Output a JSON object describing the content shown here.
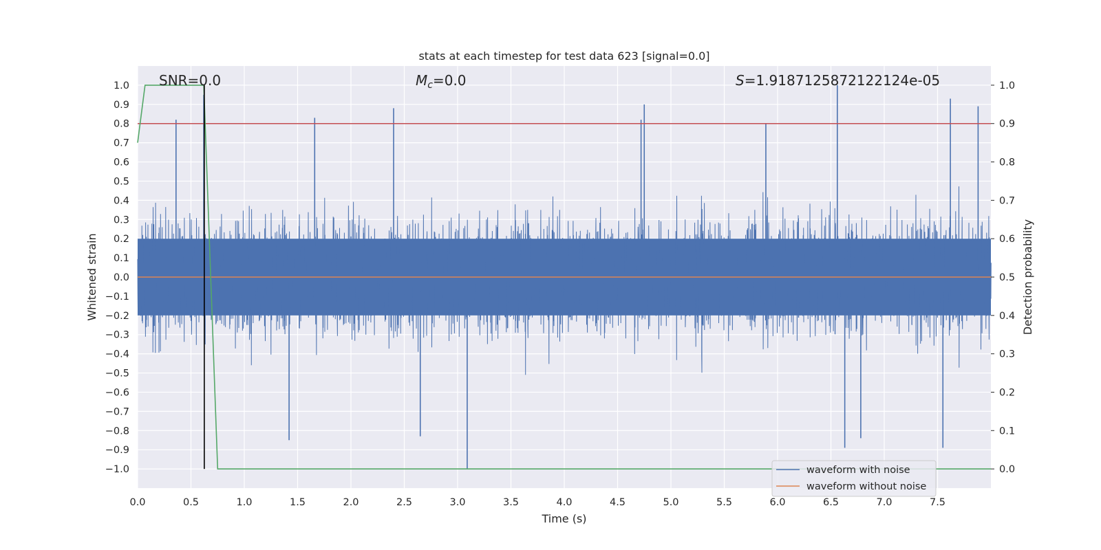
{
  "chart_data": {
    "type": "line",
    "title": "stats at each timestep for test data 623 [signal=0.0]",
    "xlabel": "Time (s)",
    "ylabel_left": "Whitened strain",
    "ylabel_right": "Detection probability",
    "xlim": [
      0.0,
      8.0
    ],
    "ylim_left": [
      -1.1,
      1.1
    ],
    "ylim_right": [
      -0.05,
      1.05
    ],
    "x_ticks": [
      "0.0",
      "0.5",
      "1.0",
      "1.5",
      "2.0",
      "2.5",
      "3.0",
      "3.5",
      "4.0",
      "4.5",
      "5.0",
      "5.5",
      "6.0",
      "6.5",
      "7.0",
      "7.5"
    ],
    "y_ticks_left": [
      "1.0",
      "0.9",
      "0.8",
      "0.7",
      "0.6",
      "0.5",
      "0.4",
      "0.3",
      "0.2",
      "0.1",
      "0.0",
      "−0.1",
      "−0.2",
      "−0.3",
      "−0.4",
      "−0.5",
      "−0.6",
      "−0.7",
      "−0.8",
      "−0.9",
      "−1.0"
    ],
    "y_ticks_right": [
      "1.0",
      "0.9",
      "0.8",
      "0.7",
      "0.6",
      "0.5",
      "0.4",
      "0.3",
      "0.2",
      "0.1",
      "0.0"
    ],
    "annotations": {
      "snr": "SNR=0.0",
      "mc_symbol": "M",
      "mc_sub": "c",
      "mc_value": "=0.0",
      "s_symbol": "S",
      "s_value": "=1.9187125872122124e-05"
    },
    "grid": true,
    "legend_position": "lower right",
    "series": [
      {
        "name": "waveform with noise",
        "axis": "left",
        "color": "#4c72b0",
        "kind": "dense noise",
        "x_range": [
          0.0,
          8.0
        ],
        "typical_envelope": [
          -0.4,
          0.4
        ],
        "peak_spikes": [
          {
            "x": 0.36,
            "y": 0.82
          },
          {
            "x": 0.62,
            "y": 0.95
          },
          {
            "x": 1.66,
            "y": 0.83
          },
          {
            "x": 2.4,
            "y": 0.88
          },
          {
            "x": 4.72,
            "y": 0.82
          },
          {
            "x": 4.75,
            "y": 0.9
          },
          {
            "x": 5.89,
            "y": 0.8
          },
          {
            "x": 6.56,
            "y": 1.0
          },
          {
            "x": 7.62,
            "y": 0.93
          },
          {
            "x": 7.88,
            "y": 0.89
          }
        ],
        "trough_spikes": [
          {
            "x": 1.42,
            "y": -0.85
          },
          {
            "x": 2.65,
            "y": -0.83
          },
          {
            "x": 3.09,
            "y": -1.0
          },
          {
            "x": 6.63,
            "y": -0.89
          },
          {
            "x": 6.78,
            "y": -0.84
          },
          {
            "x": 7.55,
            "y": -0.89
          }
        ]
      },
      {
        "name": "waveform without noise",
        "axis": "left",
        "color": "#dd8452",
        "x": [
          0.0,
          8.0
        ],
        "y": [
          0.0,
          0.0
        ]
      },
      {
        "name": "",
        "axis": "right",
        "color": "#55a868",
        "x": [
          0.0,
          0.07,
          0.1,
          0.3,
          0.62,
          0.75,
          8.0
        ],
        "y": [
          0.85,
          1.0,
          1.0,
          1.0,
          1.0,
          0.0,
          0.0
        ]
      },
      {
        "name": "",
        "axis": "right",
        "color": "#c44e52",
        "kind": "threshold",
        "x": [
          0.0,
          8.0
        ],
        "y": [
          0.9,
          0.9
        ]
      },
      {
        "name": "",
        "axis": "left",
        "color": "#000000",
        "kind": "vertical marker",
        "x": [
          0.625,
          0.625
        ],
        "y": [
          -1.0,
          1.0
        ]
      }
    ]
  }
}
